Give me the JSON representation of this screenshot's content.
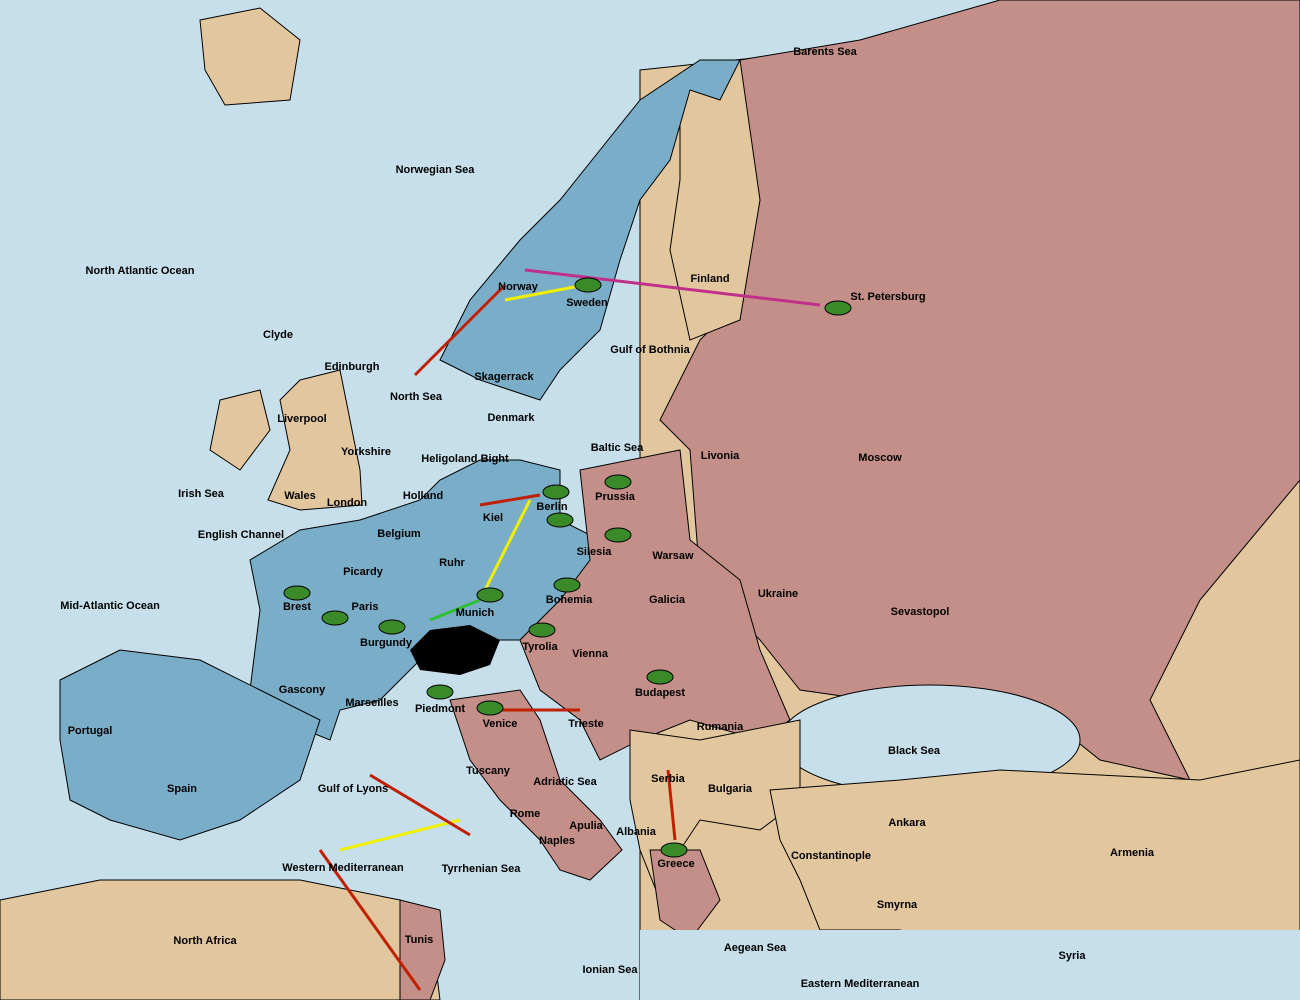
{
  "map": {
    "labels": [
      "Barents Sea",
      "Norwegian Sea",
      "North Atlantic Ocean",
      "Finland",
      "St. Petersburg",
      "Norway",
      "Sweden",
      "Gulf of Bothnia",
      "Clyde",
      "Edinburgh",
      "North Sea",
      "Skagerrack",
      "Liverpool",
      "Denmark",
      "Baltic Sea",
      "Livonia",
      "Moscow",
      "Yorkshire",
      "Heligoland Bight",
      "Irish Sea",
      "Wales",
      "London",
      "Holland",
      "Kiel",
      "Berlin",
      "Prussia",
      "English Channel",
      "Belgium",
      "Warsaw",
      "Silesia",
      "Ruhr",
      "Picardy",
      "Ukraine",
      "Sevastopol",
      "Mid-Atlantic Ocean",
      "Brest",
      "Paris",
      "Bohemia",
      "Galicia",
      "Munich",
      "Burgundy",
      "Tyrolia",
      "Vienna",
      "Budapest",
      "Gascony",
      "Marseilles",
      "Piedmont",
      "Venice",
      "Trieste",
      "Rumania",
      "Portugal",
      "Black Sea",
      "Serbia",
      "Tuscany",
      "Adriatic Sea",
      "Spain",
      "Bulgaria",
      "Gulf of Lyons",
      "Rome",
      "Ankara",
      "Apulia",
      "Albania",
      "Naples",
      "Armenia",
      "Constantinople",
      "Greece",
      "Tyrrhenian Sea",
      "Western Mediterranean",
      "Smyrna",
      "North Africa",
      "Tunis",
      "Aegean Sea",
      "Syria",
      "Ionian Sea",
      "Eastern Mediterranean"
    ]
  }
}
